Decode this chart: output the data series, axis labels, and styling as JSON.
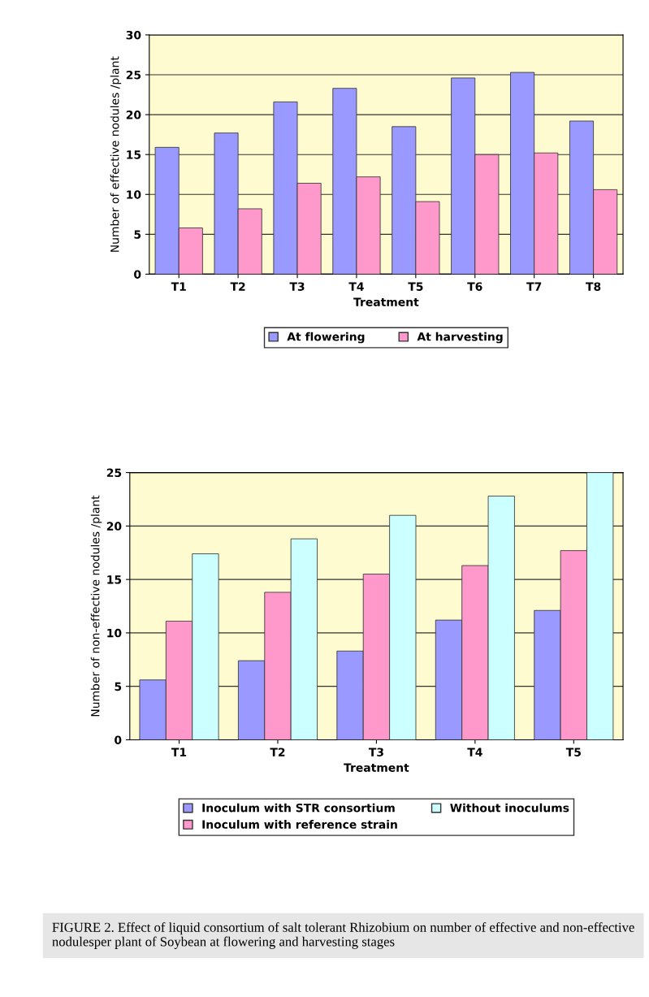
{
  "chart_data": [
    {
      "type": "bar",
      "xlabel": "Treatment",
      "ylabel": "Number of effective nodules /plant",
      "categories": [
        "T1",
        "T2",
        "T3",
        "T4",
        "T5",
        "T6",
        "T7",
        "T8"
      ],
      "series": [
        {
          "name": "At flowering",
          "color": "#9999ff",
          "values": [
            15.9,
            17.7,
            21.6,
            23.3,
            18.5,
            24.6,
            25.3,
            19.2
          ]
        },
        {
          "name": "At harvesting",
          "color": "#ff99cc",
          "values": [
            5.8,
            8.2,
            11.4,
            12.2,
            9.1,
            15.0,
            15.2,
            10.6
          ]
        }
      ],
      "ylim": [
        0,
        30
      ],
      "yticks": [
        0,
        5,
        10,
        15,
        20,
        25,
        30
      ],
      "grid": "y",
      "legend": "bottom"
    },
    {
      "type": "bar",
      "xlabel": "Treatment",
      "ylabel": "Number of non-effective nodules /plant",
      "categories": [
        "T1",
        "T2",
        "T3",
        "T4",
        "T5"
      ],
      "series": [
        {
          "name": "Inoculum with STR consortium",
          "color": "#9999ff",
          "values": [
            5.6,
            7.4,
            8.3,
            11.2,
            12.1
          ]
        },
        {
          "name": "Inoculum with reference strain",
          "color": "#ff99cc",
          "values": [
            11.1,
            13.8,
            15.5,
            16.3,
            17.7
          ]
        },
        {
          "name": "Without inoculums",
          "color": "#ccffff",
          "values": [
            17.4,
            18.8,
            21.0,
            22.8,
            25.0
          ]
        }
      ],
      "ylim": [
        0,
        25
      ],
      "yticks": [
        0,
        5,
        10,
        15,
        20,
        25
      ],
      "grid": "y",
      "legend": "bottom",
      "annotations": [
        "FIGURE 2. Effect of liquid consortium of salt tolerant Rhizobium on number of effective and non-effective nodulesper plant of Soybean at flowering and harvesting stages"
      ]
    }
  ]
}
